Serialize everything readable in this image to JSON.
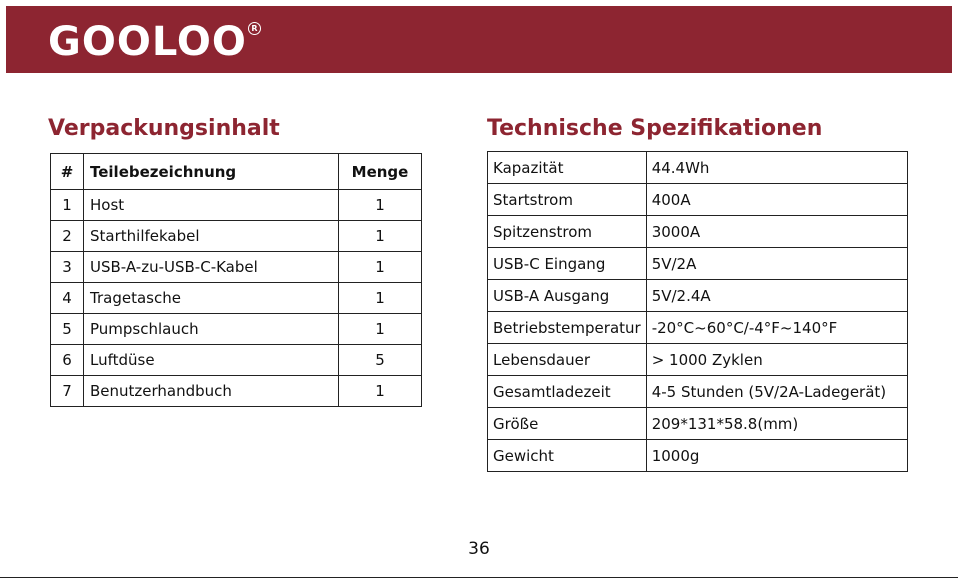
{
  "brand": {
    "logo_text": "GOOLOO",
    "reg_mark": "R"
  },
  "package": {
    "title": "Verpackungsinhalt",
    "headers": {
      "num": "#",
      "name": "Teilebezeichnung",
      "qty": "Menge"
    },
    "rows": [
      {
        "num": "1",
        "name": "Host",
        "qty": "1"
      },
      {
        "num": "2",
        "name": "Starthilfekabel",
        "qty": "1"
      },
      {
        "num": "3",
        "name": "USB-A-zu-USB-C-Kabel",
        "qty": "1"
      },
      {
        "num": "4",
        "name": "Tragetasche",
        "qty": "1"
      },
      {
        "num": "5",
        "name": "Pumpschlauch",
        "qty": "1"
      },
      {
        "num": "6",
        "name": "Luftdüse",
        "qty": "5"
      },
      {
        "num": "7",
        "name": "Benutzerhandbuch",
        "qty": "1"
      }
    ]
  },
  "specs": {
    "title": "Technische Spezifikationen",
    "rows": [
      {
        "key": "Kapazität",
        "value": "44.4Wh"
      },
      {
        "key": "Startstrom",
        "value": "400A"
      },
      {
        "key": "Spitzenstrom",
        "value": "3000A"
      },
      {
        "key": "USB-C Eingang",
        "value": "5V/2A"
      },
      {
        "key": "USB-A Ausgang",
        "value": "5V/2.4A"
      },
      {
        "key": "Betriebstemperatur",
        "value": "-20°C~60°C/-4°F~140°F"
      },
      {
        "key": "Lebensdauer",
        "value": "> 1000 Zyklen"
      },
      {
        "key": "Gesamtladezeit",
        "value": "4-5 Stunden (5V/2A-Ladegerät)"
      },
      {
        "key": "Größe",
        "value": "209*131*58.8(mm)"
      },
      {
        "key": "Gewicht",
        "value": "1000g"
      }
    ]
  },
  "page": {
    "number": "36"
  },
  "colors": {
    "brand": "#8d2531"
  }
}
